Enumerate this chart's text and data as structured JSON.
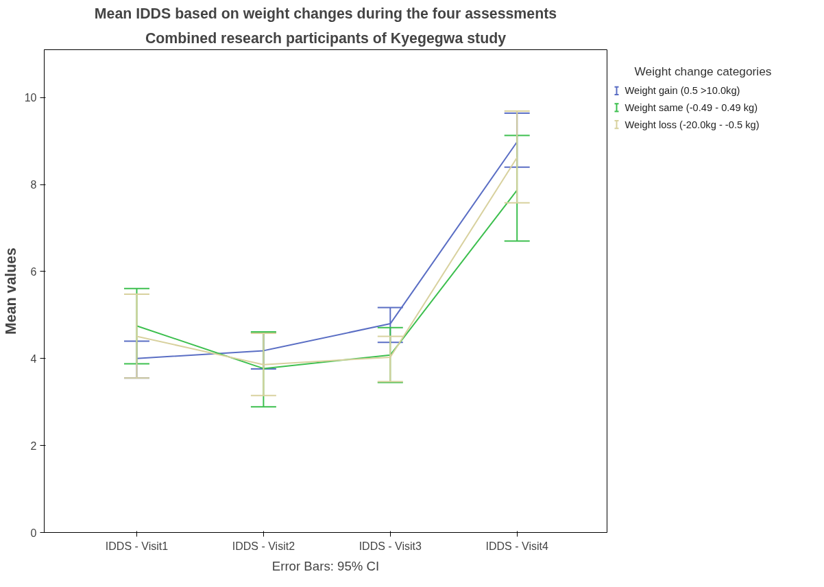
{
  "chart_data": {
    "type": "line",
    "title": "Mean IDDS based on weight changes during the four assessments",
    "subtitle": "Combined research participants of Kyegegwa study",
    "ylabel": "Mean values",
    "legend_title": "Weight change categories",
    "annotations": [
      "Error Bars: 95% CI"
    ],
    "categories": [
      "IDDS - Visit1",
      "IDDS - Visit2",
      "IDDS - Visit3",
      "IDDS - Visit4"
    ],
    "ylim": [
      0,
      11.1
    ],
    "yticks": [
      0,
      2,
      4,
      6,
      8,
      10
    ],
    "grid": false,
    "legend": "right",
    "marker": "none",
    "line_style": "solid",
    "series": [
      {
        "name": "Weight gain (0.5 >10.0kg)",
        "color": "#5a6ec4",
        "values": [
          4.0,
          4.18,
          4.8,
          8.98
        ],
        "errors": [
          [
            3.55,
            4.4
          ],
          [
            3.76,
            4.6
          ],
          [
            4.37,
            5.17
          ],
          [
            8.4,
            9.64
          ]
        ]
      },
      {
        "name": "Weight same (-0.49 - 0.49 kg)",
        "color": "#3cbf4e",
        "values": [
          4.75,
          3.77,
          4.08,
          7.87
        ],
        "errors": [
          [
            3.88,
            5.61
          ],
          [
            2.89,
            4.61
          ],
          [
            3.45,
            4.71
          ],
          [
            6.7,
            9.13
          ]
        ]
      },
      {
        "name": "Weight loss (-20.0kg - -0.5 kg)",
        "color": "#d8d19e",
        "values": [
          4.51,
          3.86,
          4.03,
          8.62
        ],
        "errors": [
          [
            3.55,
            5.48
          ],
          [
            3.15,
            4.58
          ],
          [
            3.47,
            4.51
          ],
          [
            7.58,
            9.69
          ]
        ]
      }
    ]
  }
}
